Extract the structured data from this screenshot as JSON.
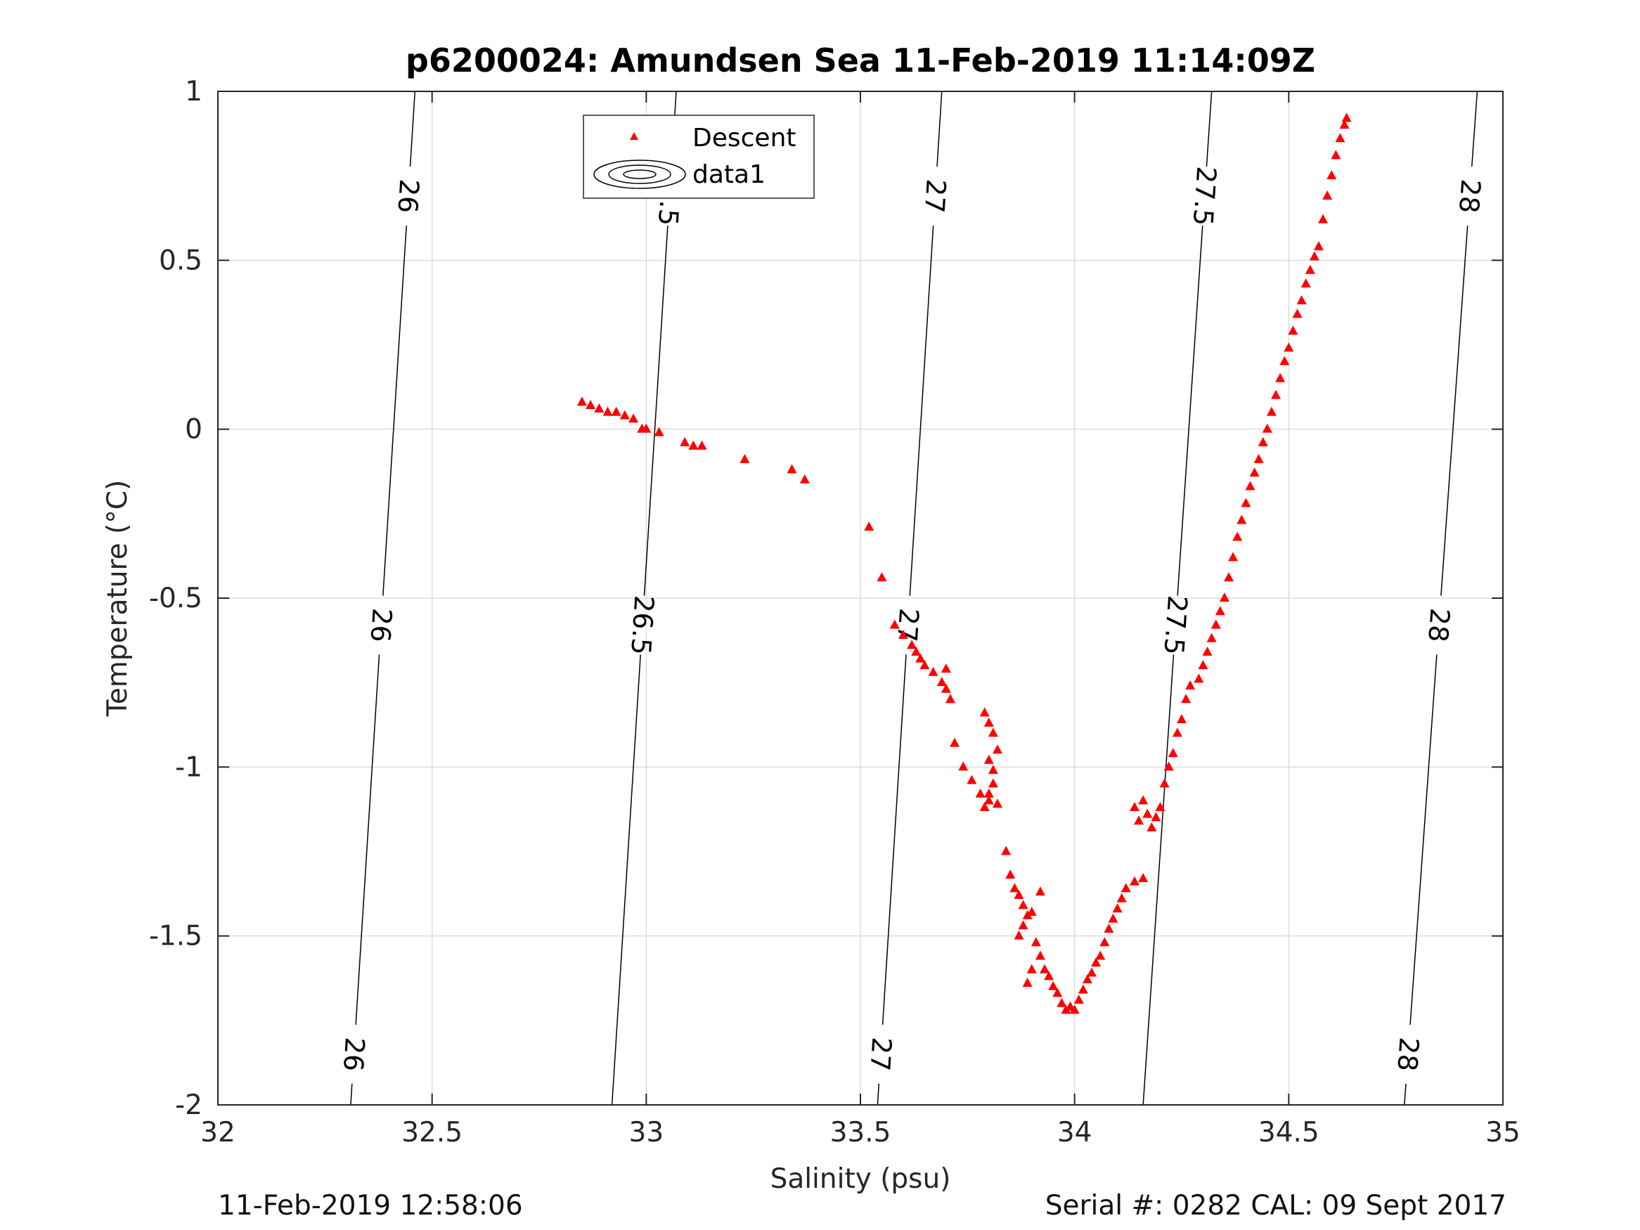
{
  "chart_data": {
    "type": "scatter",
    "title": "p6200024: Amundsen Sea 11-Feb-2019 11:14:09Z",
    "xlabel": "Salinity (psu)",
    "ylabel": "Temperature (°C)",
    "xlim": [
      32,
      35
    ],
    "ylim": [
      -2,
      1
    ],
    "xticks": [
      32,
      32.5,
      33,
      33.5,
      34,
      34.5,
      35
    ],
    "xtick_labels": [
      "32",
      "32.5",
      "33",
      "33.5",
      "34",
      "34.5",
      "35"
    ],
    "yticks": [
      -2,
      -1.5,
      -1,
      -0.5,
      0,
      0.5,
      1
    ],
    "ytick_labels": [
      "-2",
      "-1.5",
      "-1",
      "-0.5",
      "0",
      "0.5",
      "1"
    ],
    "grid": true,
    "legend": {
      "placement": "top-center",
      "entries": [
        {
          "label": "Descent",
          "marker": "triangle",
          "color": "#ff0000"
        },
        {
          "label": "data1",
          "marker": "contour",
          "color": "#000000"
        }
      ]
    },
    "contours": [
      {
        "level": "26",
        "points": [
          [
            32.31,
            -2
          ],
          [
            32.46,
            1
          ]
        ],
        "label_y": [
          -1.85,
          -0.58,
          0.69
        ]
      },
      {
        "level": "26.5",
        "points": [
          [
            32.92,
            -2
          ],
          [
            33.07,
            1
          ]
        ],
        "label_y": [
          -0.58,
          0.69
        ]
      },
      {
        "level": "27",
        "points": [
          [
            33.54,
            -2
          ],
          [
            33.69,
            1
          ]
        ],
        "label_y": [
          -1.85,
          -0.58,
          0.69
        ]
      },
      {
        "level": "27.5",
        "points": [
          [
            34.16,
            -2
          ],
          [
            34.32,
            1
          ]
        ],
        "label_y": [
          -0.58,
          0.69
        ]
      },
      {
        "level": "28",
        "points": [
          [
            34.77,
            -2
          ],
          [
            34.94,
            1
          ]
        ],
        "label_y": [
          -1.85,
          -0.58,
          0.69
        ]
      }
    ],
    "series": [
      {
        "name": "Descent",
        "color": "#ff0000",
        "marker": "triangle",
        "points": [
          [
            32.85,
            0.08
          ],
          [
            32.87,
            0.07
          ],
          [
            32.89,
            0.06
          ],
          [
            32.91,
            0.05
          ],
          [
            32.93,
            0.05
          ],
          [
            32.95,
            0.04
          ],
          [
            32.97,
            0.03
          ],
          [
            32.99,
            0.0
          ],
          [
            33.0,
            0.0
          ],
          [
            33.03,
            -0.01
          ],
          [
            33.09,
            -0.04
          ],
          [
            33.11,
            -0.05
          ],
          [
            33.13,
            -0.05
          ],
          [
            33.23,
            -0.09
          ],
          [
            33.34,
            -0.12
          ],
          [
            33.37,
            -0.15
          ],
          [
            33.52,
            -0.29
          ],
          [
            33.55,
            -0.44
          ],
          [
            33.58,
            -0.58
          ],
          [
            33.6,
            -0.61
          ],
          [
            33.62,
            -0.64
          ],
          [
            33.63,
            -0.66
          ],
          [
            33.64,
            -0.68
          ],
          [
            33.65,
            -0.7
          ],
          [
            33.67,
            -0.72
          ],
          [
            33.69,
            -0.75
          ],
          [
            33.7,
            -0.77
          ],
          [
            33.7,
            -0.71
          ],
          [
            33.71,
            -0.8
          ],
          [
            33.72,
            -0.93
          ],
          [
            33.74,
            -1.0
          ],
          [
            33.76,
            -1.04
          ],
          [
            33.78,
            -1.08
          ],
          [
            33.79,
            -1.12
          ],
          [
            33.8,
            -1.1
          ],
          [
            33.81,
            -1.05
          ],
          [
            33.8,
            -0.98
          ],
          [
            33.81,
            -0.9
          ],
          [
            33.8,
            -0.87
          ],
          [
            33.79,
            -0.84
          ],
          [
            33.82,
            -0.95
          ],
          [
            33.81,
            -1.01
          ],
          [
            33.8,
            -1.08
          ],
          [
            33.82,
            -1.11
          ],
          [
            33.84,
            -1.25
          ],
          [
            33.85,
            -1.32
          ],
          [
            33.86,
            -1.36
          ],
          [
            33.87,
            -1.38
          ],
          [
            33.88,
            -1.41
          ],
          [
            33.89,
            -1.44
          ],
          [
            33.88,
            -1.47
          ],
          [
            33.87,
            -1.5
          ],
          [
            33.9,
            -1.43
          ],
          [
            33.92,
            -1.37
          ],
          [
            33.91,
            -1.52
          ],
          [
            33.9,
            -1.6
          ],
          [
            33.89,
            -1.64
          ],
          [
            33.92,
            -1.56
          ],
          [
            33.93,
            -1.6
          ],
          [
            33.94,
            -1.62
          ],
          [
            33.95,
            -1.65
          ],
          [
            33.96,
            -1.67
          ],
          [
            33.97,
            -1.7
          ],
          [
            33.98,
            -1.72
          ],
          [
            33.99,
            -1.71
          ],
          [
            34.0,
            -1.72
          ],
          [
            34.01,
            -1.69
          ],
          [
            34.02,
            -1.66
          ],
          [
            34.03,
            -1.63
          ],
          [
            34.04,
            -1.61
          ],
          [
            34.05,
            -1.58
          ],
          [
            34.06,
            -1.56
          ],
          [
            34.07,
            -1.52
          ],
          [
            34.08,
            -1.48
          ],
          [
            34.09,
            -1.45
          ],
          [
            34.1,
            -1.42
          ],
          [
            34.11,
            -1.39
          ],
          [
            34.12,
            -1.36
          ],
          [
            34.14,
            -1.34
          ],
          [
            34.16,
            -1.33
          ],
          [
            34.14,
            -1.12
          ],
          [
            34.15,
            -1.16
          ],
          [
            34.16,
            -1.1
          ],
          [
            34.17,
            -1.14
          ],
          [
            34.18,
            -1.18
          ],
          [
            34.19,
            -1.15
          ],
          [
            34.2,
            -1.12
          ],
          [
            34.21,
            -1.05
          ],
          [
            34.22,
            -1.0
          ],
          [
            34.23,
            -0.96
          ],
          [
            34.24,
            -0.9
          ],
          [
            34.25,
            -0.86
          ],
          [
            34.26,
            -0.8
          ],
          [
            34.27,
            -0.76
          ],
          [
            34.29,
            -0.74
          ],
          [
            34.3,
            -0.7
          ],
          [
            34.31,
            -0.66
          ],
          [
            34.32,
            -0.62
          ],
          [
            34.33,
            -0.58
          ],
          [
            34.34,
            -0.54
          ],
          [
            34.35,
            -0.5
          ],
          [
            34.36,
            -0.44
          ],
          [
            34.37,
            -0.38
          ],
          [
            34.38,
            -0.32
          ],
          [
            34.39,
            -0.27
          ],
          [
            34.4,
            -0.22
          ],
          [
            34.41,
            -0.17
          ],
          [
            34.42,
            -0.13
          ],
          [
            34.43,
            -0.09
          ],
          [
            34.44,
            -0.04
          ],
          [
            34.45,
            0.0
          ],
          [
            34.46,
            0.05
          ],
          [
            34.47,
            0.1
          ],
          [
            34.48,
            0.15
          ],
          [
            34.49,
            0.2
          ],
          [
            34.5,
            0.24
          ],
          [
            34.51,
            0.29
          ],
          [
            34.52,
            0.34
          ],
          [
            34.53,
            0.38
          ],
          [
            34.54,
            0.43
          ],
          [
            34.55,
            0.47
          ],
          [
            34.56,
            0.51
          ],
          [
            34.57,
            0.54
          ],
          [
            34.58,
            0.62
          ],
          [
            34.59,
            0.69
          ],
          [
            34.6,
            0.75
          ],
          [
            34.61,
            0.81
          ],
          [
            34.62,
            0.86
          ],
          [
            34.63,
            0.9
          ],
          [
            34.635,
            0.92
          ]
        ]
      }
    ]
  },
  "footer": {
    "left": "11-Feb-2019 12:58:06",
    "right": "Serial #: 0282  CAL: 09 Sept 2017"
  }
}
